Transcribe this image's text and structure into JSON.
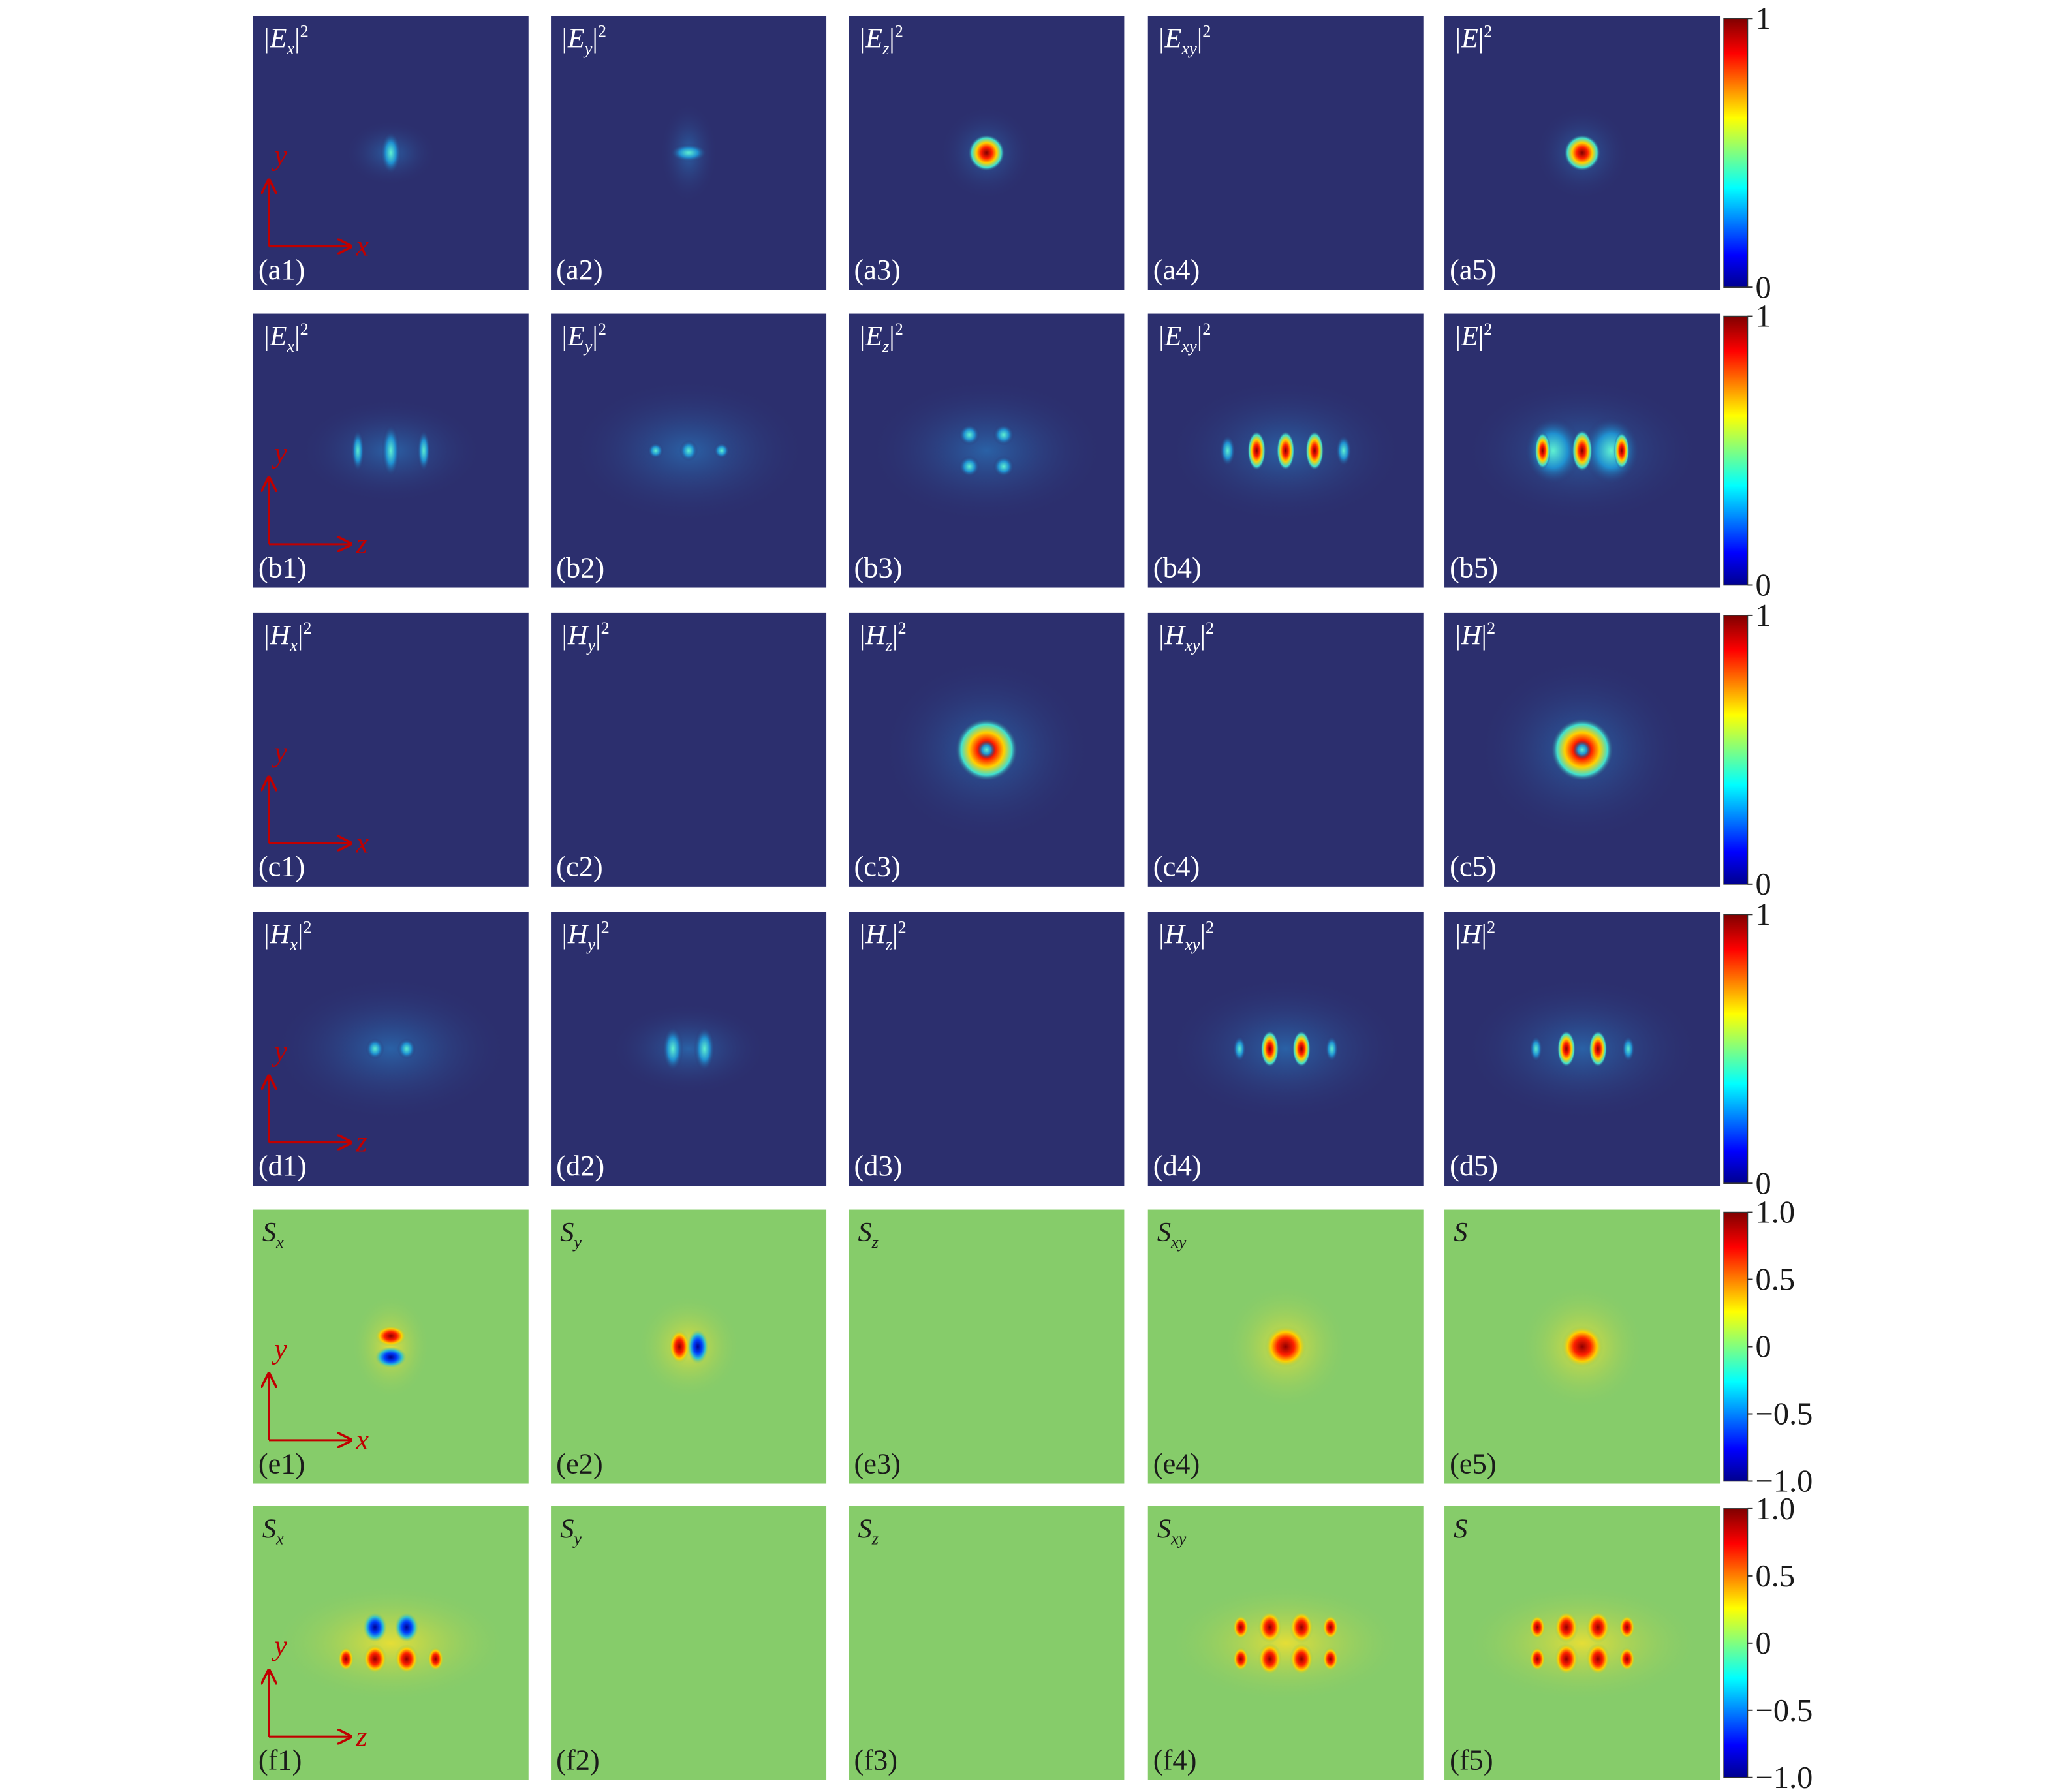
{
  "rows": [
    {
      "background": "#2c2f6e",
      "colorbar": [
        "1",
        "0"
      ],
      "axes": {
        "vertical": "y",
        "horizontal": "x"
      },
      "panels": [
        {
          "label": "(a1)",
          "title": {
            "base": "|E",
            "sub": "x",
            "close": "|",
            "sup": "2"
          }
        },
        {
          "label": "(a2)",
          "title": {
            "base": "|E",
            "sub": "y",
            "close": "|",
            "sup": "2"
          }
        },
        {
          "label": "(a3)",
          "title": {
            "base": "|E",
            "sub": "z",
            "close": "|",
            "sup": "2"
          }
        },
        {
          "label": "(a4)",
          "title": {
            "base": "|E",
            "sub": "xy",
            "close": "|",
            "sup": "2"
          }
        },
        {
          "label": "(a5)",
          "title": {
            "base": "|E",
            "close": "|",
            "sup": "2"
          }
        }
      ]
    },
    {
      "background": "#2c2f6e",
      "colorbar": [
        "1",
        "0"
      ],
      "axes": {
        "vertical": "y",
        "horizontal": "z"
      },
      "panels": [
        {
          "label": "(b1)",
          "title": {
            "base": "|E",
            "sub": "x",
            "close": "|",
            "sup": "2"
          }
        },
        {
          "label": "(b2)",
          "title": {
            "base": "|E",
            "sub": "y",
            "close": "|",
            "sup": "2"
          }
        },
        {
          "label": "(b3)",
          "title": {
            "base": "|E",
            "sub": "z",
            "close": "|",
            "sup": "2"
          }
        },
        {
          "label": "(b4)",
          "title": {
            "base": "|E",
            "sub": "xy",
            "close": "|",
            "sup": "2"
          }
        },
        {
          "label": "(b5)",
          "title": {
            "base": "|E",
            "close": "|",
            "sup": "2"
          }
        }
      ]
    },
    {
      "background": "#2c2f6e",
      "colorbar": [
        "1",
        "0"
      ],
      "axes": {
        "vertical": "y",
        "horizontal": "x"
      },
      "panels": [
        {
          "label": "(c1)",
          "title": {
            "base": "|H",
            "sub": "x",
            "close": "|",
            "sup": "2"
          }
        },
        {
          "label": "(c2)",
          "title": {
            "base": "|H",
            "sub": "y",
            "close": "|",
            "sup": "2"
          }
        },
        {
          "label": "(c3)",
          "title": {
            "base": "|H",
            "sub": "z",
            "close": "|",
            "sup": "2"
          }
        },
        {
          "label": "(c4)",
          "title": {
            "base": "|H",
            "sub": "xy",
            "close": "|",
            "sup": "2"
          }
        },
        {
          "label": "(c5)",
          "title": {
            "base": "|H",
            "close": "|",
            "sup": "2"
          }
        }
      ]
    },
    {
      "background": "#2c2f6e",
      "colorbar": [
        "1",
        "0"
      ],
      "axes": {
        "vertical": "y",
        "horizontal": "z"
      },
      "panels": [
        {
          "label": "(d1)",
          "title": {
            "base": "|H",
            "sub": "x",
            "close": "|",
            "sup": "2"
          }
        },
        {
          "label": "(d2)",
          "title": {
            "base": "|H",
            "sub": "y",
            "close": "|",
            "sup": "2"
          }
        },
        {
          "label": "(d3)",
          "title": {
            "base": "|H",
            "sub": "z",
            "close": "|",
            "sup": "2"
          }
        },
        {
          "label": "(d4)",
          "title": {
            "base": "|H",
            "sub": "xy",
            "close": "|",
            "sup": "2"
          }
        },
        {
          "label": "(d5)",
          "title": {
            "base": "|H",
            "close": "|",
            "sup": "2"
          }
        }
      ]
    },
    {
      "background": "#86cc6a",
      "colorbar": [
        "1.0",
        "0.5",
        "0",
        "−0.5",
        "−1.0"
      ],
      "axes": {
        "vertical": "y",
        "horizontal": "x"
      },
      "panels": [
        {
          "label": "(e1)",
          "title": {
            "base": "S",
            "sub": "x"
          }
        },
        {
          "label": "(e2)",
          "title": {
            "base": "S",
            "sub": "y"
          }
        },
        {
          "label": "(e3)",
          "title": {
            "base": "S",
            "sub": "z"
          }
        },
        {
          "label": "(e4)",
          "title": {
            "base": "S",
            "sub": "xy"
          }
        },
        {
          "label": "(e5)",
          "title": {
            "base": "S"
          }
        }
      ]
    },
    {
      "background": "#86cc6a",
      "colorbar": [
        "1.0",
        "0.5",
        "0",
        "−0.5",
        "−1.0"
      ],
      "axes": {
        "vertical": "y",
        "horizontal": "z"
      },
      "panels": [
        {
          "label": "(f1)",
          "title": {
            "base": "S",
            "sub": "x"
          }
        },
        {
          "label": "(f2)",
          "title": {
            "base": "S",
            "sub": "y"
          }
        },
        {
          "label": "(f3)",
          "title": {
            "base": "S",
            "sub": "z"
          }
        },
        {
          "label": "(f4)",
          "title": {
            "base": "S",
            "sub": "xy"
          }
        },
        {
          "label": "(f5)",
          "title": {
            "base": "S"
          }
        }
      ]
    }
  ]
}
